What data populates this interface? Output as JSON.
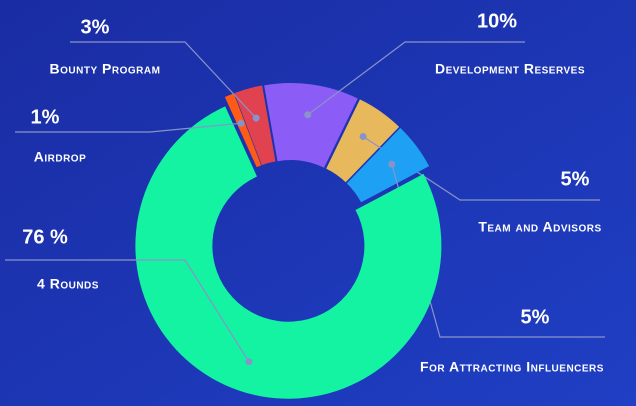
{
  "chart_data": {
    "type": "pie",
    "categories": [
      "Development Reserves",
      "Team and Advisors",
      "For Attracting Influencers",
      "4 Rounds",
      "Airdrop",
      "Bounty Program"
    ],
    "values": [
      10,
      5,
      5,
      76,
      1,
      3
    ],
    "value_labels": [
      "10%",
      "5%",
      "5%",
      "76 %",
      "1%",
      "3%"
    ],
    "colors": [
      "#8b5cf6",
      "#e7b95c",
      "#1ea0f5",
      "#13f3a2",
      "#ff5b17",
      "#e0424f"
    ]
  }
}
